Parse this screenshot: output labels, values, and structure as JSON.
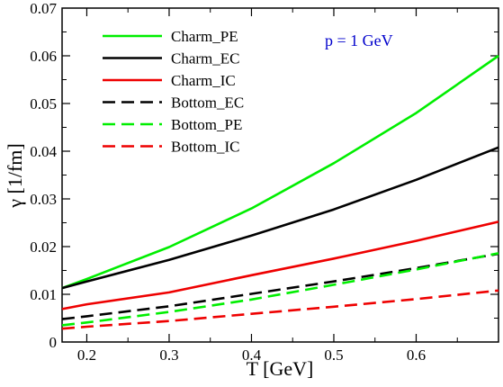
{
  "chart_data": {
    "type": "line",
    "xlabel": "T [GeV]",
    "ylabel": "γ [1/fm]",
    "xlim": [
      0.17,
      0.7
    ],
    "ylim": [
      0,
      0.07
    ],
    "xticks": [
      0.2,
      0.3,
      0.4,
      0.5,
      0.6
    ],
    "yticks": [
      0,
      0.01,
      0.02,
      0.03,
      0.04,
      0.05,
      0.06,
      0.07
    ],
    "xtick_labels": [
      "0.2",
      "0.3",
      "0.4",
      "0.5",
      "0.6"
    ],
    "ytick_labels": [
      "0",
      "0.01",
      "0.02",
      "0.03",
      "0.04",
      "0.05",
      "0.06",
      "0.07"
    ],
    "grid": false,
    "legend_position": "top-left",
    "annotation": "p = 1 GeV",
    "x": [
      0.17,
      0.2,
      0.3,
      0.4,
      0.5,
      0.6,
      0.7
    ],
    "series": [
      {
        "name": "Charm_PE",
        "color": "#00ee00",
        "dash": "solid",
        "values": [
          0.0113,
          0.0132,
          0.0199,
          0.028,
          0.0375,
          0.048,
          0.06
        ]
      },
      {
        "name": "Charm_EC",
        "color": "#000000",
        "dash": "solid",
        "values": [
          0.0113,
          0.0127,
          0.0172,
          0.0223,
          0.0278,
          0.034,
          0.0408
        ]
      },
      {
        "name": "Charm_IC",
        "color": "#ee0000",
        "dash": "solid",
        "values": [
          0.0069,
          0.0079,
          0.0104,
          0.014,
          0.0175,
          0.0212,
          0.0252
        ]
      },
      {
        "name": "Bottom_EC",
        "color": "#000000",
        "dash": "dashed",
        "values": [
          0.0048,
          0.0054,
          0.0075,
          0.0101,
          0.0127,
          0.0155,
          0.0185
        ]
      },
      {
        "name": "Bottom_PE",
        "color": "#00ee00",
        "dash": "dashed",
        "values": [
          0.0035,
          0.0041,
          0.0063,
          0.0089,
          0.012,
          0.0152,
          0.0186
        ]
      },
      {
        "name": "Bottom_IC",
        "color": "#ee0000",
        "dash": "dashed",
        "values": [
          0.0028,
          0.0032,
          0.0044,
          0.0059,
          0.0074,
          0.009,
          0.0108
        ]
      }
    ]
  }
}
